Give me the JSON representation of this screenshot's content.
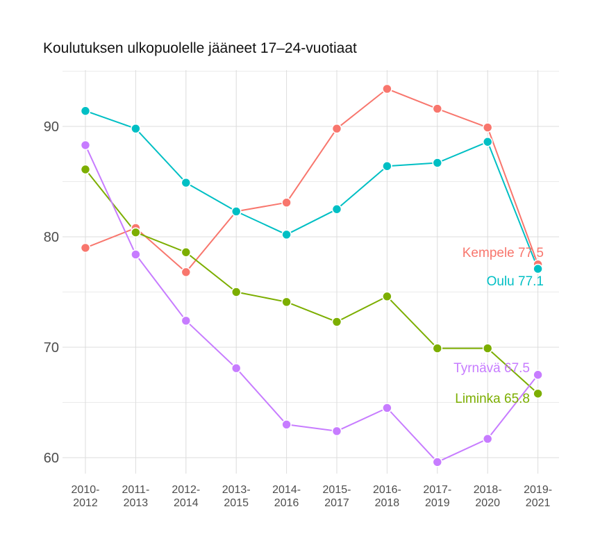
{
  "chart_data": {
    "type": "line",
    "title": "Koulutuksen ulkopuolelle jääneet 17–24-vuotiaat",
    "xlabel": "",
    "ylabel": "",
    "categories": [
      [
        "2010-",
        "2012"
      ],
      [
        "2011-",
        "2013"
      ],
      [
        "2012-",
        "2014"
      ],
      [
        "2013-",
        "2015"
      ],
      [
        "2014-",
        "2016"
      ],
      [
        "2015-",
        "2017"
      ],
      [
        "2016-",
        "2018"
      ],
      [
        "2017-",
        "2019"
      ],
      [
        "2018-",
        "2020"
      ],
      [
        "2019-",
        "2021"
      ]
    ],
    "yticks": [
      60,
      70,
      80,
      90
    ],
    "ylim": [
      58.5,
      95.5
    ],
    "grid": true,
    "series": [
      {
        "name": "Kempele",
        "color": "#F8766D",
        "values": [
          79.0,
          80.8,
          76.8,
          82.3,
          83.1,
          89.8,
          93.4,
          91.6,
          89.9,
          77.5
        ],
        "end_label": "Kempele 77.5"
      },
      {
        "name": "Oulu",
        "color": "#00BFC4",
        "values": [
          91.4,
          89.8,
          84.9,
          82.3,
          80.2,
          82.5,
          86.4,
          86.7,
          88.6,
          77.1
        ],
        "end_label": "Oulu 77.1"
      },
      {
        "name": "Liminka",
        "color": "#7CAE00",
        "values": [
          86.1,
          80.4,
          78.6,
          75.0,
          74.1,
          72.3,
          74.6,
          69.9,
          69.9,
          65.8
        ],
        "end_label": "Liminka 65.8"
      },
      {
        "name": "Tyrnävä",
        "color": "#C77CFF",
        "values": [
          88.3,
          78.4,
          72.4,
          68.1,
          63.0,
          62.4,
          64.5,
          59.6,
          61.7,
          67.5
        ],
        "end_label": "Tyrnävä 67.5"
      }
    ]
  }
}
